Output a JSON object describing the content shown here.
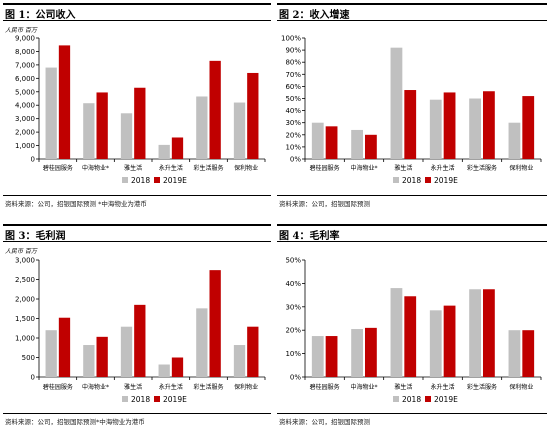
{
  "panels": [
    {
      "title": "图 1：公司收入",
      "unit": "人民币 百万",
      "source": "资料来源：公司，招银国际预测   *中海物业为港币",
      "legend": {
        "a": "2018",
        "b": "2019E"
      }
    },
    {
      "title": "图 2：收入增速",
      "unit": "",
      "source": "资料来源：公司，招银国际预测",
      "legend": {
        "a": "2018",
        "b": "2019E"
      }
    },
    {
      "title": "图 3：毛利润",
      "unit": "人民币 百万",
      "source": "资料来源：公司，招银国际预测*中海物业为港币",
      "legend": {
        "a": "2018",
        "b": "2019E"
      }
    },
    {
      "title": "图 4：毛利率",
      "unit": "",
      "source": "资料来源：公司，招银国际预测",
      "legend": {
        "a": "2018",
        "b": "2019E"
      }
    }
  ],
  "colors": {
    "s2018": "#c0c0c0",
    "s2019": "#c00000"
  },
  "chart_data": [
    {
      "type": "bar",
      "title": "图 1：公司收入",
      "ylabel": "人民币 百万",
      "categories": [
        "碧桂园服务",
        "中海物业*",
        "雅生活",
        "永升生活",
        "彩生活服务",
        "保利物业"
      ],
      "series": [
        {
          "name": "2018",
          "values": [
            6800,
            4150,
            3400,
            1050,
            4650,
            4200
          ]
        },
        {
          "name": "2019E",
          "values": [
            8450,
            4950,
            5300,
            1600,
            7300,
            6400
          ]
        }
      ],
      "ylim": [
        0,
        9000
      ],
      "yticks": [
        0,
        1000,
        2000,
        3000,
        4000,
        5000,
        6000,
        7000,
        8000,
        9000
      ],
      "ytick_labels": [
        "0",
        "1,000",
        "2,000",
        "3,000",
        "4,000",
        "5,000",
        "6,000",
        "7,000",
        "8,000",
        "9,000"
      ],
      "legend": "bottom"
    },
    {
      "type": "bar",
      "title": "图 2：收入增速",
      "categories": [
        "碧桂园服务",
        "中海物业*",
        "雅生活",
        "永升生活",
        "彩生活服务",
        "保利物业"
      ],
      "series": [
        {
          "name": "2018",
          "values": [
            0.3,
            0.24,
            0.92,
            0.49,
            0.5,
            0.3
          ]
        },
        {
          "name": "2019E",
          "values": [
            0.27,
            0.2,
            0.57,
            0.55,
            0.56,
            0.52
          ]
        }
      ],
      "ylim": [
        0,
        1.0
      ],
      "yticks": [
        0,
        0.1,
        0.2,
        0.3,
        0.4,
        0.5,
        0.6,
        0.7,
        0.8,
        0.9,
        1.0
      ],
      "ytick_labels": [
        "0%",
        "10%",
        "20%",
        "30%",
        "40%",
        "50%",
        "60%",
        "70%",
        "80%",
        "90%",
        "100%"
      ],
      "legend": "bottom"
    },
    {
      "type": "bar",
      "title": "图 3：毛利润",
      "ylabel": "人民币 百万",
      "categories": [
        "碧桂园服务",
        "中海物业*",
        "雅生活",
        "永升生活",
        "彩生活服务",
        "保利物业"
      ],
      "series": [
        {
          "name": "2018",
          "values": [
            1200,
            820,
            1290,
            320,
            1760,
            820
          ]
        },
        {
          "name": "2019E",
          "values": [
            1520,
            1030,
            1850,
            500,
            2740,
            1290
          ]
        }
      ],
      "ylim": [
        0,
        3000
      ],
      "yticks": [
        0,
        500,
        1000,
        1500,
        2000,
        2500,
        3000
      ],
      "ytick_labels": [
        "0",
        "500",
        "1,000",
        "1,500",
        "2,000",
        "2,500",
        "3,000"
      ],
      "legend": "bottom"
    },
    {
      "type": "bar",
      "title": "图 4：毛利率",
      "categories": [
        "碧桂园服务",
        "中海物业*",
        "雅生活",
        "永升生活",
        "彩生活服务",
        "保利物业"
      ],
      "series": [
        {
          "name": "2018",
          "values": [
            0.175,
            0.205,
            0.38,
            0.285,
            0.375,
            0.2
          ]
        },
        {
          "name": "2019E",
          "values": [
            0.175,
            0.21,
            0.345,
            0.305,
            0.375,
            0.2
          ]
        }
      ],
      "ylim": [
        0,
        0.5
      ],
      "yticks": [
        0,
        0.1,
        0.2,
        0.3,
        0.4,
        0.5
      ],
      "ytick_labels": [
        "0%",
        "10%",
        "20%",
        "30%",
        "40%",
        "50%"
      ],
      "legend": "bottom"
    }
  ]
}
